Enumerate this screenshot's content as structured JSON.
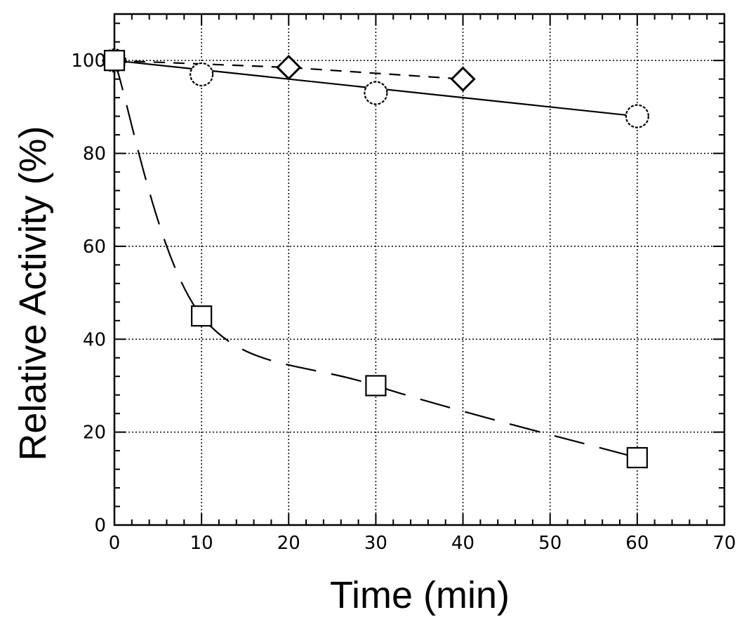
{
  "chart_data": {
    "type": "line",
    "title": "",
    "xlabel": "Time (min)",
    "ylabel": "Relative Activity (%)",
    "xlim": [
      0,
      70
    ],
    "ylim": [
      0,
      110
    ],
    "xticks": [
      0,
      10,
      20,
      30,
      40,
      50,
      60,
      70
    ],
    "yticks": [
      0,
      20,
      40,
      60,
      80,
      100
    ],
    "grid": true,
    "legend": "none",
    "series": [
      {
        "marker": "diamond",
        "line_style": "short-dash",
        "x": [
          0,
          20,
          40
        ],
        "y": [
          100,
          98.5,
          96
        ]
      },
      {
        "marker": "circle",
        "line_style": "solid",
        "x": [
          0,
          10,
          30,
          60
        ],
        "y": [
          100,
          97,
          93,
          88
        ]
      },
      {
        "marker": "square",
        "line_style": "long-dash",
        "x": [
          0,
          10,
          30,
          60
        ],
        "y": [
          100,
          45,
          30,
          14.5
        ]
      }
    ],
    "colors": {
      "ink": "#000000",
      "background": "#ffffff"
    }
  }
}
